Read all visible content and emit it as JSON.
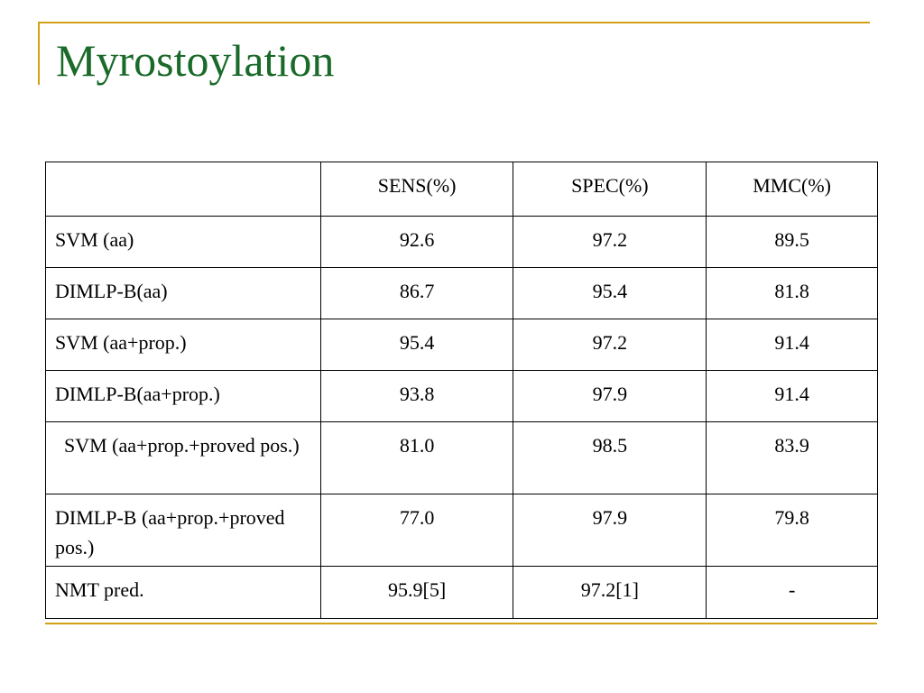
{
  "slide": {
    "title": "Myrostoylation"
  },
  "table": {
    "headers": [
      "",
      "SENS(%)",
      "SPEC(%)",
      "MMC(%)"
    ],
    "rows": [
      {
        "label": "SVM (aa)",
        "sens": "92.6",
        "spec": "97.2",
        "mmc": "89.5"
      },
      {
        "label": "DIMLP-B(aa)",
        "sens": "86.7",
        "spec": "95.4",
        "mmc": "81.8"
      },
      {
        "label": "SVM (aa+prop.)",
        "sens": "95.4",
        "spec": "97.2",
        "mmc": "91.4"
      },
      {
        "label": "DIMLP-B(aa+prop.)",
        "sens": "93.8",
        "spec": "97.9",
        "mmc": "91.4"
      },
      {
        "label": "SVM (aa+prop.+proved pos.)",
        "sens": "81.0",
        "spec": "98.5",
        "mmc": "83.9"
      },
      {
        "label": "DIMLP-B (aa+prop.+proved pos.)",
        "sens": "77.0",
        "spec": "97.9",
        "mmc": "79.8"
      },
      {
        "label": "NMT pred.",
        "sens": "95.9[5]",
        "spec": "97.2[1]",
        "mmc": "-"
      }
    ]
  },
  "theme": {
    "title_color": "#1a6a2a",
    "rule_color": "#d4a017"
  }
}
